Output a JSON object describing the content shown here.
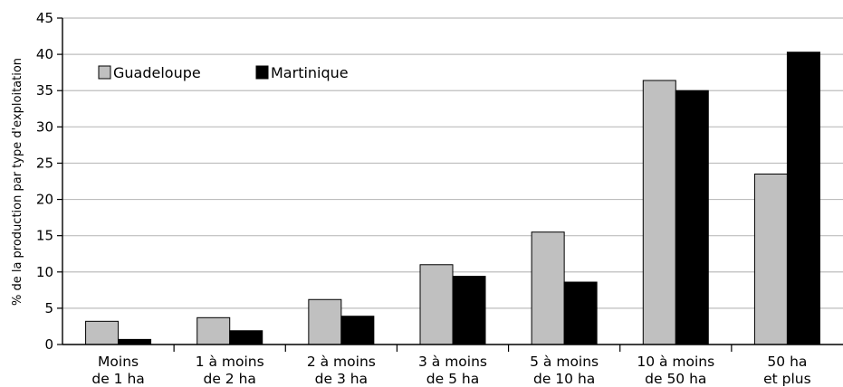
{
  "chart_data": {
    "type": "bar",
    "ylabel": "% de la production par type d'exploitation",
    "ylim": [
      0,
      45
    ],
    "yticks": [
      0,
      5,
      10,
      15,
      20,
      25,
      30,
      35,
      40,
      45
    ],
    "grid": true,
    "legend_position": "top-left",
    "categories": [
      [
        "Moins",
        "de 1 ha"
      ],
      [
        "1 à moins",
        "de 2 ha"
      ],
      [
        "2 à moins",
        "de 3 ha"
      ],
      [
        "3 à moins",
        "de 5 ha"
      ],
      [
        "5 à moins",
        "de 10 ha"
      ],
      [
        "10 à moins",
        "de 50 ha"
      ],
      [
        "50 ha",
        "et plus"
      ]
    ],
    "series": [
      {
        "name": "Guadeloupe",
        "color": "#c0c0c0",
        "values": [
          3.2,
          3.7,
          6.2,
          11.0,
          15.5,
          36.4,
          23.5
        ]
      },
      {
        "name": "Martinique",
        "color": "#000000",
        "values": [
          0.7,
          1.9,
          3.9,
          9.4,
          8.6,
          35.0,
          40.3
        ]
      }
    ]
  }
}
